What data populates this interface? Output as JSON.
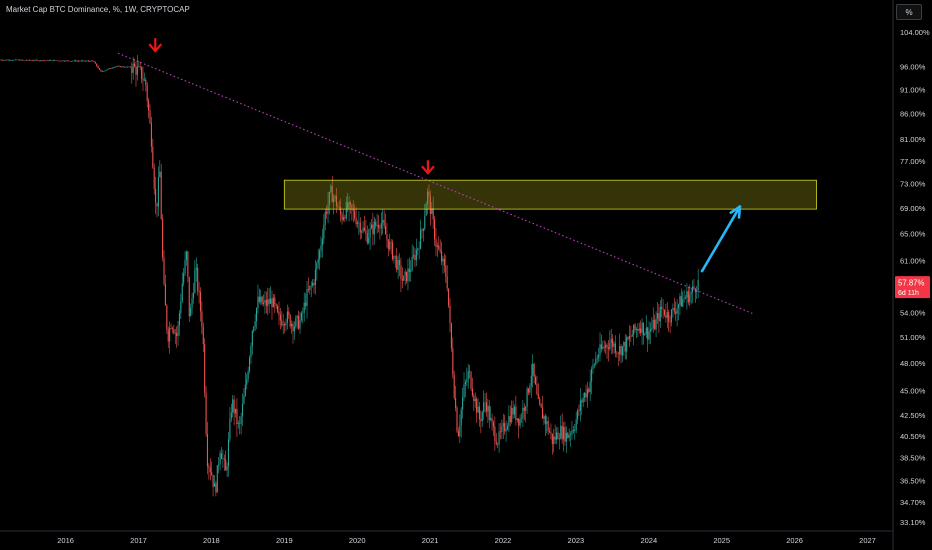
{
  "header": {
    "title": "Market Cap BTC Dominance, %, 1W, CRYPTOCAP",
    "scale_button": "%"
  },
  "price_tag": {
    "value": "57.87%",
    "countdown": "6d 11h",
    "color": "#f23645"
  },
  "colors": {
    "background": "#000000",
    "up": "#26a69a",
    "down": "#ef5350",
    "trendline": "#c040c0",
    "zone_fill": "#8a8a14",
    "zone_stroke": "#d8d820",
    "marker_arrow": "#e51919",
    "projection_arrow": "#29b6f6"
  },
  "chart_data": {
    "type": "candlestick",
    "title": "Market Cap BTC Dominance, %, 1W, CRYPTOCAP",
    "scale": "log",
    "y_ticks": [
      "104.00%",
      "96.00%",
      "91.00%",
      "86.00%",
      "81.00%",
      "77.00%",
      "73.00%",
      "69.00%",
      "65.00%",
      "61.00%",
      "54.00%",
      "51.00%",
      "48.00%",
      "45.00%",
      "42.50%",
      "40.50%",
      "38.50%",
      "36.50%",
      "34.70%",
      "33.10%"
    ],
    "x_ticks": [
      "2016",
      "2017",
      "2018",
      "2019",
      "2020",
      "2021",
      "2022",
      "2023",
      "2024",
      "2025",
      "2026",
      "2027"
    ],
    "ylim": [
      32.5,
      107
    ],
    "xlim": [
      2015.1,
      2027.35
    ],
    "last_value": 57.87,
    "series_path": [
      [
        2015.1,
        97.5
      ],
      [
        2016.4,
        97.2
      ],
      [
        2016.5,
        94.8
      ],
      [
        2016.7,
        96.0
      ],
      [
        2016.95,
        95.8
      ],
      [
        2017.05,
        94.5
      ],
      [
        2017.12,
        92.0
      ],
      [
        2017.2,
        80.5
      ],
      [
        2017.26,
        68.2
      ],
      [
        2017.31,
        75.5
      ],
      [
        2017.36,
        58.0
      ],
      [
        2017.42,
        51.0
      ],
      [
        2017.47,
        53.0
      ],
      [
        2017.55,
        51.0
      ],
      [
        2017.62,
        58.0
      ],
      [
        2017.68,
        62.0
      ],
      [
        2017.72,
        53.0
      ],
      [
        2017.8,
        60.0
      ],
      [
        2017.9,
        52.0
      ],
      [
        2017.96,
        38.5
      ],
      [
        2018.02,
        37.2
      ],
      [
        2018.07,
        35.5
      ],
      [
        2018.14,
        39.5
      ],
      [
        2018.22,
        37.0
      ],
      [
        2018.3,
        44.0
      ],
      [
        2018.4,
        41.0
      ],
      [
        2018.5,
        46.0
      ],
      [
        2018.58,
        52.0
      ],
      [
        2018.66,
        55.5
      ],
      [
        2018.74,
        55.0
      ],
      [
        2018.85,
        55.5
      ],
      [
        2018.95,
        53.0
      ],
      [
        2019.05,
        53.5
      ],
      [
        2019.15,
        52.5
      ],
      [
        2019.25,
        53.0
      ],
      [
        2019.32,
        56.0
      ],
      [
        2019.42,
        58.0
      ],
      [
        2019.5,
        62.0
      ],
      [
        2019.58,
        68.0
      ],
      [
        2019.66,
        71.5
      ],
      [
        2019.73,
        70.0
      ],
      [
        2019.8,
        67.5
      ],
      [
        2019.88,
        69.0
      ],
      [
        2019.96,
        68.2
      ],
      [
        2020.05,
        66.5
      ],
      [
        2020.15,
        64.5
      ],
      [
        2020.25,
        66.0
      ],
      [
        2020.34,
        67.0
      ],
      [
        2020.45,
        63.5
      ],
      [
        2020.55,
        61.0
      ],
      [
        2020.65,
        58.0
      ],
      [
        2020.75,
        60.0
      ],
      [
        2020.85,
        63.0
      ],
      [
        2020.92,
        66.0
      ],
      [
        2020.98,
        71.5
      ],
      [
        2021.04,
        68.0
      ],
      [
        2021.1,
        63.5
      ],
      [
        2021.18,
        61.0
      ],
      [
        2021.25,
        58.5
      ],
      [
        2021.3,
        51.0
      ],
      [
        2021.35,
        45.0
      ],
      [
        2021.4,
        40.5
      ],
      [
        2021.48,
        45.0
      ],
      [
        2021.55,
        47.0
      ],
      [
        2021.62,
        44.5
      ],
      [
        2021.7,
        42.0
      ],
      [
        2021.78,
        44.0
      ],
      [
        2021.86,
        41.5
      ],
      [
        2021.95,
        40.0
      ],
      [
        2022.05,
        41.5
      ],
      [
        2022.15,
        43.0
      ],
      [
        2022.25,
        42.0
      ],
      [
        2022.35,
        44.5
      ],
      [
        2022.42,
        47.5
      ],
      [
        2022.5,
        43.5
      ],
      [
        2022.6,
        42.0
      ],
      [
        2022.7,
        40.0
      ],
      [
        2022.8,
        41.0
      ],
      [
        2022.9,
        40.5
      ],
      [
        2023.0,
        41.5
      ],
      [
        2023.1,
        44.0
      ],
      [
        2023.2,
        45.5
      ],
      [
        2023.25,
        47.5
      ],
      [
        2023.32,
        49.0
      ],
      [
        2023.42,
        50.0
      ],
      [
        2023.5,
        50.5
      ],
      [
        2023.6,
        49.5
      ],
      [
        2023.7,
        50.0
      ],
      [
        2023.8,
        51.5
      ],
      [
        2023.9,
        52.5
      ],
      [
        2024.0,
        51.5
      ],
      [
        2024.1,
        52.5
      ],
      [
        2024.2,
        54.5
      ],
      [
        2024.3,
        53.5
      ],
      [
        2024.42,
        55.0
      ],
      [
        2024.52,
        56.0
      ],
      [
        2024.6,
        56.5
      ],
      [
        2024.68,
        57.87
      ]
    ],
    "annotations": {
      "trendline": {
        "from": [
          2016.72,
          99.0
        ],
        "to": [
          2025.45,
          53.8
        ],
        "style": "dotted"
      },
      "resistance_zone": {
        "x": [
          2019.0,
          2026.3
        ],
        "y": [
          68.8,
          73.6
        ]
      },
      "down_arrows": [
        [
          2017.23,
          99.5
        ],
        [
          2020.97,
          74.8
        ]
      ],
      "projection_arrow": {
        "from": [
          2024.73,
          59.5
        ],
        "to": [
          2025.25,
          69.2
        ]
      }
    }
  }
}
